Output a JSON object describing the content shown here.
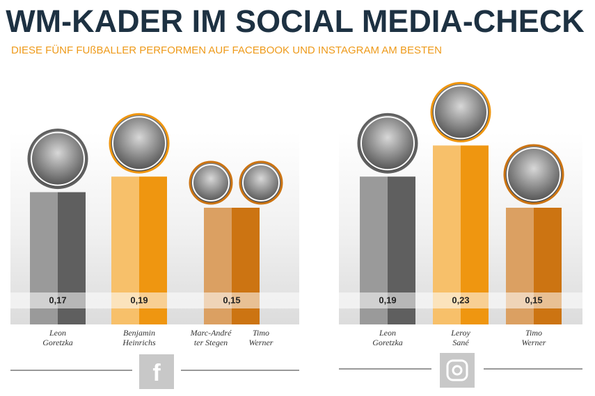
{
  "header": {
    "title": "WM-KADER IM SOCIAL MEDIA-CHECK",
    "subtitle": "DIESE FÜNF FUßBALLER PERFORMEN AUF FACEBOOK UND INSTAGRAM AM BESTEN"
  },
  "chart_data": [
    {
      "type": "bar",
      "platform": "facebook",
      "categories": [
        "Leon Goretzka",
        "Benjamin Heinrichs",
        [
          "Marc-André ter Stegen",
          "Timo Werner"
        ]
      ],
      "values": [
        0.17,
        0.19,
        0.15
      ],
      "value_labels": [
        "0,17",
        "0,19",
        "0,15"
      ],
      "colors": [
        [
          "#9a9a9a",
          "#5f5f5f"
        ],
        [
          "#f7c06a",
          "#ef9610"
        ],
        [
          "#dba062",
          "#cc7412"
        ]
      ]
    },
    {
      "type": "bar",
      "platform": "instagram",
      "categories": [
        "Leon Goretzka",
        "Leroy Sané",
        "Timo Werner"
      ],
      "values": [
        0.19,
        0.23,
        0.15
      ],
      "value_labels": [
        "0,19",
        "0,23",
        "0,15"
      ],
      "colors": [
        [
          "#9a9a9a",
          "#5f5f5f"
        ],
        [
          "#f7c06a",
          "#ef9610"
        ],
        [
          "#dba062",
          "#cc7412"
        ]
      ]
    }
  ]
}
